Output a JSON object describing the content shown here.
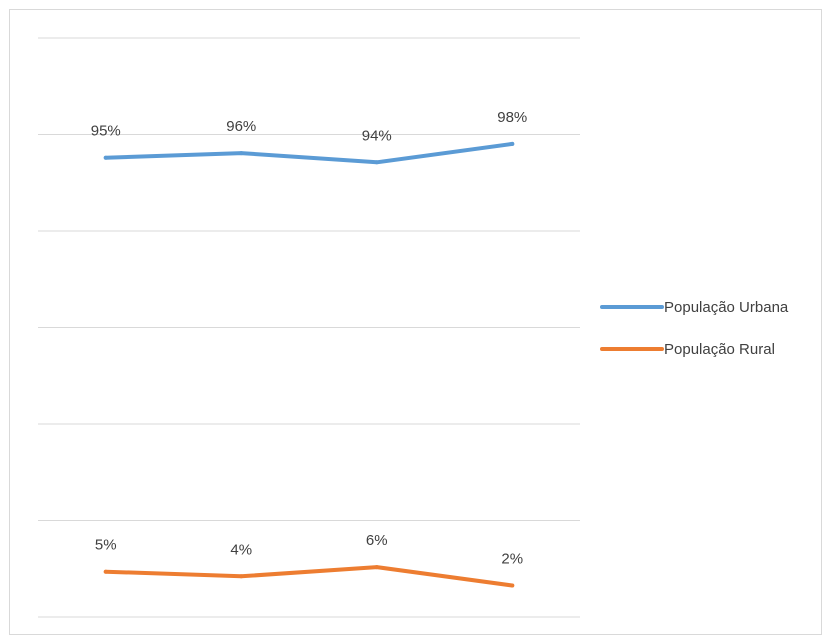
{
  "chart_data": {
    "type": "line",
    "categories": [
      "",
      "",
      "",
      ""
    ],
    "series": [
      {
        "name": "População Urbana",
        "color": "#5b9bd5",
        "values": [
          95,
          96,
          94,
          98
        ],
        "labels": [
          "95%",
          "96%",
          "94%",
          "98%"
        ]
      },
      {
        "name": "População Rural",
        "color": "#ed7d31",
        "values": [
          5,
          4,
          6,
          2
        ],
        "labels": [
          "5%",
          "4%",
          "6%",
          "2%"
        ]
      }
    ],
    "gridlines": 7,
    "legend_position": "right",
    "title": "",
    "xlabel": "",
    "ylabel": ""
  }
}
